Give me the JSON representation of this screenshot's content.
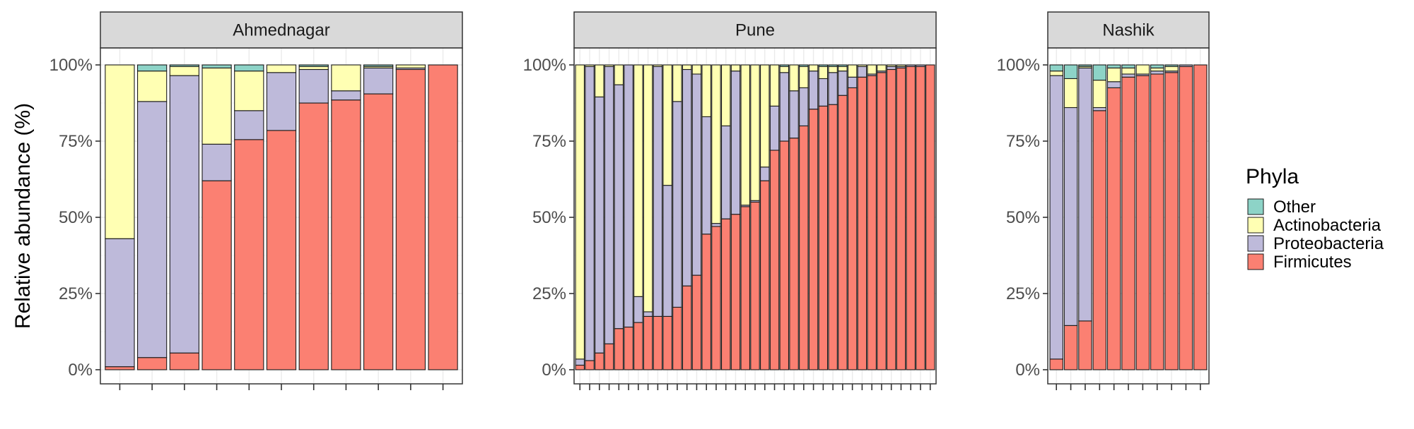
{
  "chart_data": {
    "type": "bar",
    "stacked": true,
    "ylabel": "Relative abundance (%)",
    "y_ticks": [
      "0%",
      "25%",
      "50%",
      "75%",
      "100%"
    ],
    "ylim": [
      0,
      100
    ],
    "grid": true,
    "legend": {
      "title": "Phyla",
      "placement": "right",
      "entries": [
        {
          "name": "Other",
          "color": "#8DD3C7"
        },
        {
          "name": "Actinobacteria",
          "color": "#FFFFB3"
        },
        {
          "name": "Proteobacteria",
          "color": "#BEBADA"
        },
        {
          "name": "Firmicutes",
          "color": "#FB8072"
        }
      ]
    },
    "panels": [
      {
        "label": "Ahmednagar",
        "bars": [
          {
            "Firmicutes": 1,
            "Proteobacteria": 42,
            "Actinobacteria": 57,
            "Other": 0
          },
          {
            "Firmicutes": 4,
            "Proteobacteria": 84,
            "Actinobacteria": 10,
            "Other": 2
          },
          {
            "Firmicutes": 5.5,
            "Proteobacteria": 91,
            "Actinobacteria": 3,
            "Other": 0.5
          },
          {
            "Firmicutes": 62,
            "Proteobacteria": 12,
            "Actinobacteria": 25,
            "Other": 1
          },
          {
            "Firmicutes": 75.5,
            "Proteobacteria": 9.5,
            "Actinobacteria": 13,
            "Other": 2
          },
          {
            "Firmicutes": 78.5,
            "Proteobacteria": 19,
            "Actinobacteria": 2.5,
            "Other": 0
          },
          {
            "Firmicutes": 87.5,
            "Proteobacteria": 11,
            "Actinobacteria": 1,
            "Other": 0.5
          },
          {
            "Firmicutes": 88.5,
            "Proteobacteria": 3,
            "Actinobacteria": 8.5,
            "Other": 0
          },
          {
            "Firmicutes": 90.5,
            "Proteobacteria": 8.5,
            "Actinobacteria": 0.5,
            "Other": 0.5
          },
          {
            "Firmicutes": 98.5,
            "Proteobacteria": 0.5,
            "Actinobacteria": 1,
            "Other": 0
          },
          {
            "Firmicutes": 100,
            "Proteobacteria": 0,
            "Actinobacteria": 0,
            "Other": 0
          }
        ]
      },
      {
        "label": "Pune",
        "bars": [
          {
            "Firmicutes": 1.5,
            "Proteobacteria": 2,
            "Actinobacteria": 96.5,
            "Other": 0
          },
          {
            "Firmicutes": 3,
            "Proteobacteria": 96.5,
            "Actinobacteria": 0.5,
            "Other": 0
          },
          {
            "Firmicutes": 5.5,
            "Proteobacteria": 84,
            "Actinobacteria": 10.5,
            "Other": 0
          },
          {
            "Firmicutes": 8.5,
            "Proteobacteria": 91,
            "Actinobacteria": 0.5,
            "Other": 0
          },
          {
            "Firmicutes": 13.5,
            "Proteobacteria": 80,
            "Actinobacteria": 6.5,
            "Other": 0
          },
          {
            "Firmicutes": 14,
            "Proteobacteria": 86,
            "Actinobacteria": 0,
            "Other": 0
          },
          {
            "Firmicutes": 15.5,
            "Proteobacteria": 8.5,
            "Actinobacteria": 76,
            "Other": 0
          },
          {
            "Firmicutes": 17.5,
            "Proteobacteria": 1.5,
            "Actinobacteria": 81,
            "Other": 0
          },
          {
            "Firmicutes": 17.5,
            "Proteobacteria": 82,
            "Actinobacteria": 0.5,
            "Other": 0
          },
          {
            "Firmicutes": 17.5,
            "Proteobacteria": 43,
            "Actinobacteria": 39.5,
            "Other": 0
          },
          {
            "Firmicutes": 20.5,
            "Proteobacteria": 67.5,
            "Actinobacteria": 12,
            "Other": 0
          },
          {
            "Firmicutes": 27.5,
            "Proteobacteria": 71,
            "Actinobacteria": 1.5,
            "Other": 0
          },
          {
            "Firmicutes": 31,
            "Proteobacteria": 66,
            "Actinobacteria": 3,
            "Other": 0
          },
          {
            "Firmicutes": 44.5,
            "Proteobacteria": 38.5,
            "Actinobacteria": 17,
            "Other": 0
          },
          {
            "Firmicutes": 47,
            "Proteobacteria": 1,
            "Actinobacteria": 52,
            "Other": 0
          },
          {
            "Firmicutes": 49.5,
            "Proteobacteria": 30.5,
            "Actinobacteria": 20,
            "Other": 0
          },
          {
            "Firmicutes": 51,
            "Proteobacteria": 47,
            "Actinobacteria": 2,
            "Other": 0
          },
          {
            "Firmicutes": 53.5,
            "Proteobacteria": 0.5,
            "Actinobacteria": 46,
            "Other": 0
          },
          {
            "Firmicutes": 55,
            "Proteobacteria": 0.5,
            "Actinobacteria": 44.5,
            "Other": 0
          },
          {
            "Firmicutes": 62,
            "Proteobacteria": 4.5,
            "Actinobacteria": 33.5,
            "Other": 0
          },
          {
            "Firmicutes": 72,
            "Proteobacteria": 14.5,
            "Actinobacteria": 13.5,
            "Other": 0
          },
          {
            "Firmicutes": 75,
            "Proteobacteria": 22.5,
            "Actinobacteria": 2,
            "Other": 0.5
          },
          {
            "Firmicutes": 76,
            "Proteobacteria": 15.5,
            "Actinobacteria": 8.5,
            "Other": 0
          },
          {
            "Firmicutes": 80,
            "Proteobacteria": 12.5,
            "Actinobacteria": 7,
            "Other": 0.5
          },
          {
            "Firmicutes": 85.5,
            "Proteobacteria": 12.5,
            "Actinobacteria": 2,
            "Other": 0
          },
          {
            "Firmicutes": 86.5,
            "Proteobacteria": 9,
            "Actinobacteria": 4,
            "Other": 0.5
          },
          {
            "Firmicutes": 87,
            "Proteobacteria": 10.5,
            "Actinobacteria": 2,
            "Other": 0.5
          },
          {
            "Firmicutes": 90,
            "Proteobacteria": 8,
            "Actinobacteria": 1.5,
            "Other": 0.5
          },
          {
            "Firmicutes": 92.5,
            "Proteobacteria": 3.5,
            "Actinobacteria": 4,
            "Other": 0
          },
          {
            "Firmicutes": 96,
            "Proteobacteria": 3.5,
            "Actinobacteria": 0.5,
            "Other": 0
          },
          {
            "Firmicutes": 96.5,
            "Proteobacteria": 0.5,
            "Actinobacteria": 3,
            "Other": 0
          },
          {
            "Firmicutes": 97.5,
            "Proteobacteria": 0.5,
            "Actinobacteria": 2,
            "Other": 0
          },
          {
            "Firmicutes": 98.5,
            "Proteobacteria": 1,
            "Actinobacteria": 0.5,
            "Other": 0
          },
          {
            "Firmicutes": 99,
            "Proteobacteria": 0.5,
            "Actinobacteria": 0.5,
            "Other": 0
          },
          {
            "Firmicutes": 99.5,
            "Proteobacteria": 0.5,
            "Actinobacteria": 0,
            "Other": 0
          },
          {
            "Firmicutes": 99.5,
            "Proteobacteria": 0.5,
            "Actinobacteria": 0,
            "Other": 0
          },
          {
            "Firmicutes": 100,
            "Proteobacteria": 0,
            "Actinobacteria": 0,
            "Other": 0
          }
        ]
      },
      {
        "label": "Nashik",
        "bars": [
          {
            "Firmicutes": 3.5,
            "Proteobacteria": 93,
            "Actinobacteria": 1.5,
            "Other": 2
          },
          {
            "Firmicutes": 14.5,
            "Proteobacteria": 71.5,
            "Actinobacteria": 9.5,
            "Other": 4.5
          },
          {
            "Firmicutes": 16,
            "Proteobacteria": 83,
            "Actinobacteria": 0.5,
            "Other": 0.5
          },
          {
            "Firmicutes": 85,
            "Proteobacteria": 1,
            "Actinobacteria": 9,
            "Other": 5
          },
          {
            "Firmicutes": 92.5,
            "Proteobacteria": 2,
            "Actinobacteria": 4.5,
            "Other": 1
          },
          {
            "Firmicutes": 96,
            "Proteobacteria": 1,
            "Actinobacteria": 2,
            "Other": 1
          },
          {
            "Firmicutes": 96.5,
            "Proteobacteria": 0.5,
            "Actinobacteria": 3,
            "Other": 0
          },
          {
            "Firmicutes": 97,
            "Proteobacteria": 1,
            "Actinobacteria": 1,
            "Other": 1
          },
          {
            "Firmicutes": 97.5,
            "Proteobacteria": 0.5,
            "Actinobacteria": 1.5,
            "Other": 0.5
          },
          {
            "Firmicutes": 99.5,
            "Proteobacteria": 0.5,
            "Actinobacteria": 0,
            "Other": 0
          },
          {
            "Firmicutes": 100,
            "Proteobacteria": 0,
            "Actinobacteria": 0,
            "Other": 0
          }
        ]
      }
    ]
  }
}
